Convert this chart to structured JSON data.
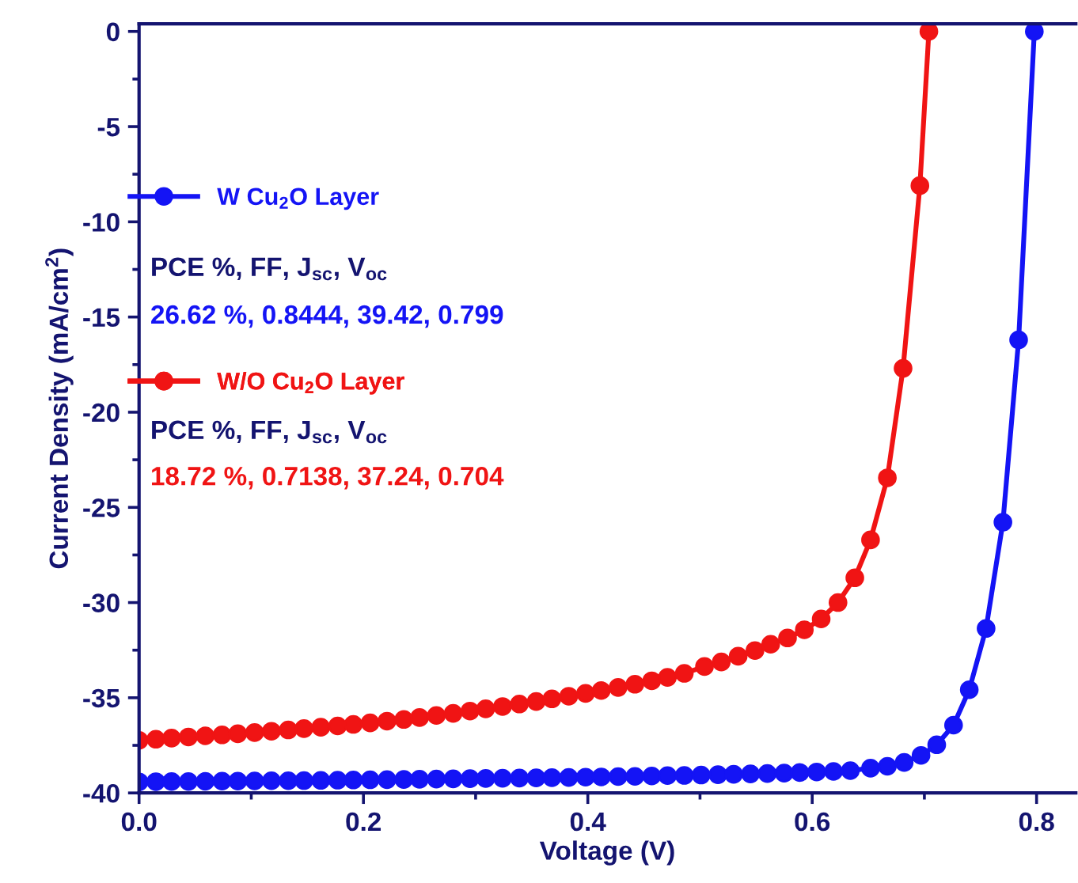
{
  "chart_data": {
    "type": "line",
    "xlabel": "Voltage (V)",
    "ylabel": "Current Density (mA/cm$^{2}$)",
    "series": [
      {
        "name": "W Cu$_{2}$O Layer",
        "color": "#1414f5",
        "x": [
          0,
          0.015,
          0.029,
          0.044,
          0.059,
          0.074,
          0.088,
          0.103,
          0.118,
          0.133,
          0.147,
          0.162,
          0.177,
          0.191,
          0.206,
          0.221,
          0.236,
          0.25,
          0.265,
          0.28,
          0.295,
          0.309,
          0.324,
          0.339,
          0.354,
          0.368,
          0.383,
          0.398,
          0.412,
          0.427,
          0.442,
          0.457,
          0.471,
          0.486,
          0.501,
          0.516,
          0.53,
          0.545,
          0.56,
          0.575,
          0.589,
          0.604,
          0.619,
          0.634,
          0.652,
          0.667,
          0.682,
          0.697,
          0.711,
          0.726,
          0.74,
          0.755,
          0.77,
          0.784,
          0.798
        ],
        "values": [
          -39.42,
          -39.41,
          -39.4,
          -39.4,
          -39.39,
          -39.38,
          -39.38,
          -39.37,
          -39.36,
          -39.36,
          -39.35,
          -39.34,
          -39.33,
          -39.32,
          -39.31,
          -39.3,
          -39.29,
          -39.28,
          -39.27,
          -39.26,
          -39.25,
          -39.24,
          -39.23,
          -39.22,
          -39.21,
          -39.2,
          -39.19,
          -39.17,
          -39.16,
          -39.14,
          -39.13,
          -39.11,
          -39.09,
          -39.08,
          -39.06,
          -39.04,
          -39.02,
          -39.0,
          -38.98,
          -38.96,
          -38.93,
          -38.9,
          -38.87,
          -38.83,
          -38.7,
          -38.6,
          -38.4,
          -38.03,
          -37.47,
          -36.44,
          -34.58,
          -31.36,
          -25.78,
          -16.2,
          0
        ]
      },
      {
        "name": "W/O Cu$_{2}$O Layer",
        "color": "#f01414",
        "x": [
          0,
          0.015,
          0.029,
          0.044,
          0.059,
          0.074,
          0.088,
          0.103,
          0.118,
          0.133,
          0.147,
          0.162,
          0.177,
          0.191,
          0.206,
          0.221,
          0.236,
          0.25,
          0.265,
          0.28,
          0.295,
          0.309,
          0.324,
          0.339,
          0.354,
          0.368,
          0.383,
          0.398,
          0.412,
          0.427,
          0.442,
          0.457,
          0.471,
          0.486,
          0.504,
          0.519,
          0.534,
          0.549,
          0.563,
          0.578,
          0.593,
          0.608,
          0.623,
          0.638,
          0.652,
          0.667,
          0.681,
          0.696,
          0.704
        ],
        "values": [
          -37.24,
          -37.18,
          -37.12,
          -37.06,
          -37.0,
          -36.95,
          -36.89,
          -36.83,
          -36.76,
          -36.69,
          -36.62,
          -36.55,
          -36.48,
          -36.4,
          -36.32,
          -36.23,
          -36.14,
          -36.04,
          -35.93,
          -35.82,
          -35.7,
          -35.58,
          -35.46,
          -35.33,
          -35.2,
          -35.06,
          -34.92,
          -34.77,
          -34.62,
          -34.46,
          -34.29,
          -34.11,
          -33.93,
          -33.72,
          -33.36,
          -33.12,
          -32.82,
          -32.52,
          -32.19,
          -31.86,
          -31.43,
          -30.86,
          -30.0,
          -28.7,
          -26.71,
          -23.45,
          -17.7,
          -8.1,
          0
        ]
      }
    ],
    "annotations": [
      "PCE %, FF, J$_{sc}$, V$_{oc}$",
      "26.62 %, 0.8444, 39.42, 0.799",
      "PCE %, FF, J$_{sc}$, V$_{oc}$",
      "18.72 %, 0.7138, 37.24, 0.704"
    ],
    "xlim": [
      0,
      0.835
    ],
    "ylim": [
      -40,
      0.4
    ],
    "xticks": [
      {
        "value": 0,
        "label": "0.0"
      },
      {
        "value": 0.1,
        "label": null
      },
      0.2,
      {
        "value": 0.3,
        "label": null
      },
      0.4,
      {
        "value": 0.5,
        "label": null
      },
      0.6,
      {
        "value": 0.7,
        "label": null
      },
      0.8
    ],
    "yticks": [
      -40,
      {
        "value": -37.5,
        "label": null
      },
      -35,
      {
        "value": -32.5,
        "label": null
      },
      -30,
      {
        "value": -27.5,
        "label": null
      },
      -25,
      {
        "value": -22.5,
        "label": null
      },
      -20,
      {
        "value": -17.5,
        "label": null
      },
      -15,
      {
        "value": -12.5,
        "label": null
      },
      -10,
      {
        "value": -7.5,
        "label": null
      },
      -5,
      {
        "value": -2.5,
        "label": null
      },
      0
    ],
    "legend": "left",
    "marker": "circle",
    "line_style": "solid",
    "grid": false
  }
}
